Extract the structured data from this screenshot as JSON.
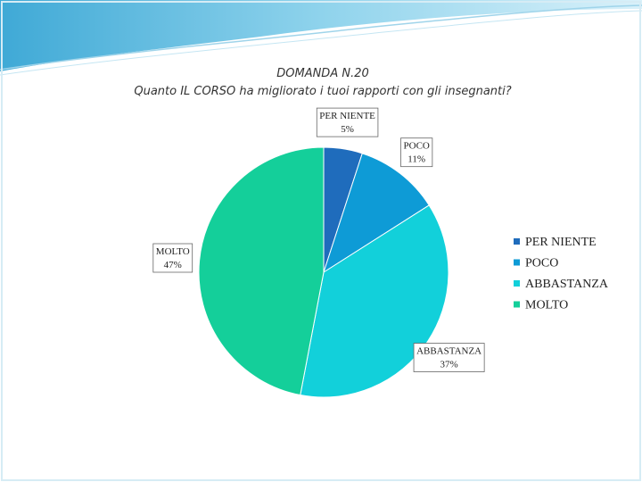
{
  "chart_data": {
    "type": "pie",
    "title": "DOMANDA N.20",
    "subtitle": "Quanto IL CORSO ha migliorato i tuoi rapporti con gli insegnanti?",
    "categories": [
      "PER NIENTE",
      "POCO",
      "ABBASTANZA",
      "MOLTO"
    ],
    "values": [
      5,
      11,
      37,
      47
    ],
    "value_labels": [
      "5%",
      "11%",
      "37%",
      "47%"
    ],
    "colors": [
      "#1f6cbc",
      "#0e9bd6",
      "#12d0da",
      "#14cf9a"
    ],
    "legend": "right"
  }
}
